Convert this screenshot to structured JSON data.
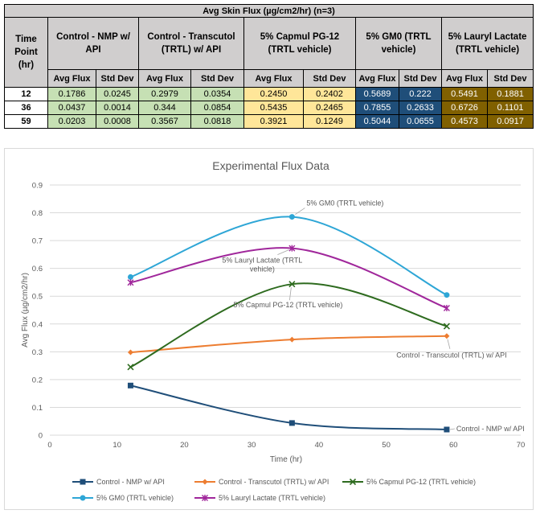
{
  "table": {
    "title": "Avg Skin Flux (µg/cm2/hr) (n=3)",
    "time_header": "Time Point (hr)",
    "groups": [
      {
        "label": "Control - NMP w/ API",
        "color": "green"
      },
      {
        "label": "Control - Transcutol (TRTL) w/ API",
        "color": "green"
      },
      {
        "label": "5% Capmul PG-12 (TRTL vehicle)",
        "color": "yellow"
      },
      {
        "label": "5% GM0 (TRTL vehicle)",
        "color": "blue"
      },
      {
        "label": "5% Lauryl Lactate (TRTL vehicle)",
        "color": "gold"
      }
    ],
    "sub_headers": [
      "Avg Flux",
      "Std Dev"
    ],
    "rows": [
      {
        "time": "12",
        "cells": [
          "0.1786",
          "0.0245",
          "0.2979",
          "0.0354",
          "0.2450",
          "0.2402",
          "0.5689",
          "0.222",
          "0.5491",
          "0.1881"
        ]
      },
      {
        "time": "36",
        "cells": [
          "0.0437",
          "0.0014",
          "0.344",
          "0.0854",
          "0.5435",
          "0.2465",
          "0.7855",
          "0.2633",
          "0.6726",
          "0.1101"
        ]
      },
      {
        "time": "59",
        "cells": [
          "0.0203",
          "0.0008",
          "0.3567",
          "0.0818",
          "0.3921",
          "0.1249",
          "0.5044",
          "0.0655",
          "0.4573",
          "0.0917"
        ]
      }
    ]
  },
  "chart_data": {
    "type": "line",
    "title": "Experimental Flux Data",
    "xlabel": "Time (hr)",
    "ylabel": "Avg Flux (µg/cm2/hr)",
    "xlim": [
      0,
      70
    ],
    "ylim": [
      0,
      0.9
    ],
    "xticks": [
      "0",
      "10",
      "20",
      "30",
      "40",
      "50",
      "60",
      "70"
    ],
    "yticks": [
      "0",
      "0.1",
      "0.2",
      "0.3",
      "0.4",
      "0.5",
      "0.6",
      "0.7",
      "0.8",
      "0.9"
    ],
    "grid": true,
    "legend_position": "bottom",
    "x": [
      12,
      36,
      59
    ],
    "series": [
      {
        "name": "Control - NMP w/ API",
        "values": [
          0.1786,
          0.0437,
          0.0203
        ],
        "color": "#1f4e79",
        "marker": "square",
        "smooth": true
      },
      {
        "name": "Control - Transcutol (TRTL) w/ API",
        "values": [
          0.2979,
          0.344,
          0.3567
        ],
        "color": "#ed7d31",
        "marker": "diamond",
        "smooth": true
      },
      {
        "name": "5% Capmul PG-12 (TRTL vehicle)",
        "values": [
          0.245,
          0.5435,
          0.3921
        ],
        "color": "#2e6b1f",
        "marker": "x",
        "smooth": true
      },
      {
        "name": "5% GM0 (TRTL vehicle)",
        "values": [
          0.5689,
          0.7855,
          0.5044
        ],
        "color": "#2ea6d6",
        "marker": "circle",
        "smooth": true
      },
      {
        "name": "5% Lauryl Lactate (TRTL vehicle)",
        "values": [
          0.5491,
          0.6726,
          0.4573
        ],
        "color": "#a0279b",
        "marker": "star",
        "smooth": true
      }
    ],
    "annotations": [
      {
        "series": 3,
        "point": 1,
        "text": "5% GM0 (TRTL vehicle)"
      },
      {
        "series": 4,
        "point": 1,
        "text": "5% Lauryl Lactate (TRTL vehicle)"
      },
      {
        "series": 2,
        "point": 1,
        "text": "5% Capmul PG-12 (TRTL vehicle)"
      },
      {
        "series": 1,
        "point": 2,
        "text": "Control - Transcutol (TRTL) w/ API"
      },
      {
        "series": 0,
        "point": 2,
        "text": "Control - NMP w/ API"
      }
    ]
  }
}
